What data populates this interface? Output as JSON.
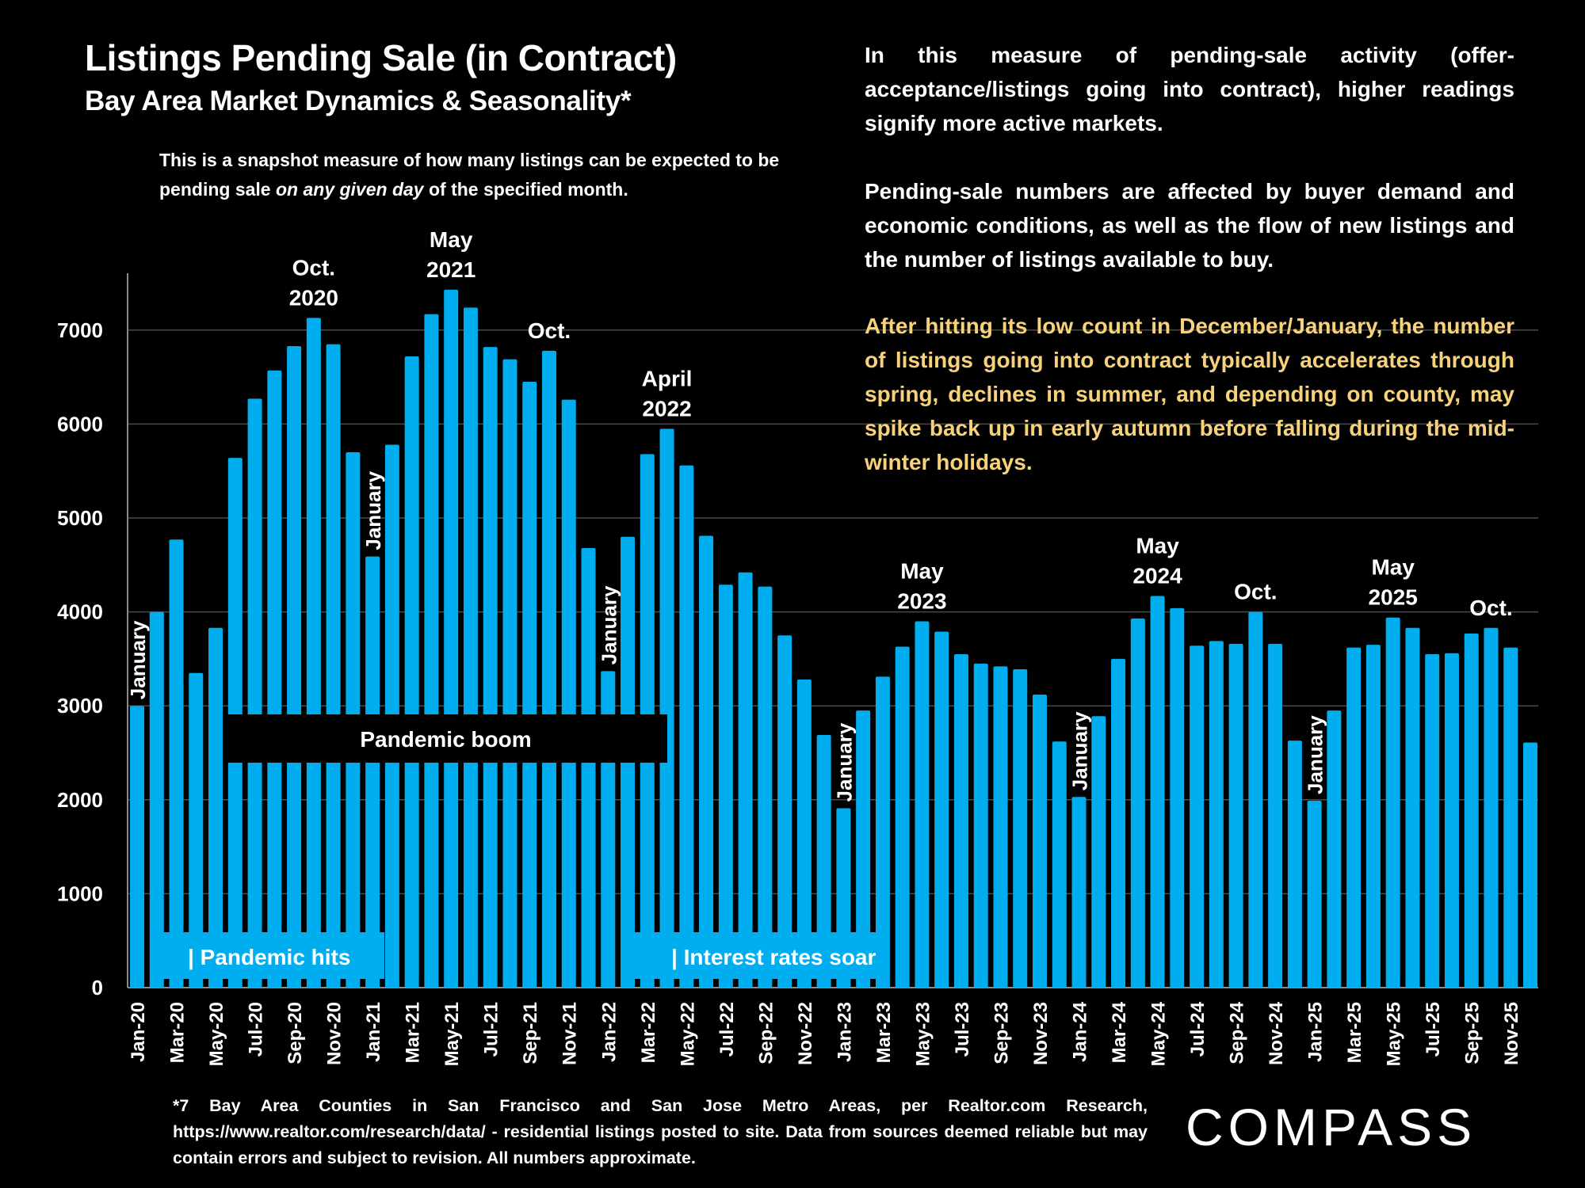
{
  "header": {
    "title": "Listings Pending Sale (in Contract)",
    "subtitle": "Bay Area Market Dynamics & Seasonality*",
    "snapshot_prefix": "This is a snapshot measure of how many listings can be expected to be pending sale ",
    "snapshot_emphasis": "on any given day",
    "snapshot_suffix": " of the specified month."
  },
  "commentary": {
    "paragraph1": "In this measure of pending-sale activity (offer-acceptance/listings going into contract), higher readings signify more active markets.",
    "paragraph2": "Pending-sale numbers are affected by buyer demand and economic conditions, as well as the flow of new listings and the number of listings available to buy.",
    "paragraph3": "After hitting its low count in December/January, the number of listings going into contract typically accelerates through spring, declines in summer, and depending on county, may spike back up in early autumn before falling during the mid-winter holidays.",
    "highlight_color": "#f7d27a"
  },
  "footer": {
    "footnote": "*7 Bay Area Counties in San Francisco and San Jose Metro Areas, per Realtor.com Research, https://www.realtor.com/research/data/ - residential listings posted to site.  Data from sources deemed reliable but may contain errors and subject to revision. All numbers approximate.",
    "logo_text": "COMPASS"
  },
  "chart_data": {
    "type": "bar",
    "title": "Listings Pending Sale (in Contract)",
    "xlabel": "",
    "ylabel": "",
    "ylim": [
      0,
      7500
    ],
    "yticks": [
      0,
      1000,
      2000,
      3000,
      4000,
      5000,
      6000,
      7000
    ],
    "grid": true,
    "bar_color": "#00adef",
    "categories": [
      "Jan-20",
      "Feb-20",
      "Mar-20",
      "Apr-20",
      "May-20",
      "Jun-20",
      "Jul-20",
      "Aug-20",
      "Sep-20",
      "Oct-20",
      "Nov-20",
      "Dec-20",
      "Jan-21",
      "Feb-21",
      "Mar-21",
      "Apr-21",
      "May-21",
      "Jun-21",
      "Jul-21",
      "Aug-21",
      "Sep-21",
      "Oct-21",
      "Nov-21",
      "Dec-21",
      "Jan-22",
      "Feb-22",
      "Mar-22",
      "Apr-22",
      "May-22",
      "Jun-22",
      "Jul-22",
      "Aug-22",
      "Sep-22",
      "Oct-22",
      "Nov-22",
      "Dec-22",
      "Jan-23",
      "Feb-23",
      "Mar-23",
      "Apr-23",
      "May-23",
      "Jun-23",
      "Jul-23",
      "Aug-23",
      "Sep-23",
      "Oct-23",
      "Nov-23",
      "Dec-23",
      "Jan-24",
      "Feb-24",
      "Mar-24",
      "Apr-24",
      "May-24",
      "Jun-24",
      "Jul-24",
      "Aug-24",
      "Sep-24",
      "Oct-24",
      "Nov-24",
      "Dec-24",
      "Jan-25",
      "Feb-25",
      "Mar-25",
      "Apr-25",
      "May-25",
      "Jun-25",
      "Jul-25",
      "Aug-25",
      "Sep-25",
      "Oct-25",
      "Nov-25",
      "Dec-25"
    ],
    "values": [
      3000,
      4000,
      4770,
      3350,
      3830,
      5640,
      6270,
      6570,
      6830,
      7130,
      6850,
      5700,
      4590,
      5780,
      6720,
      7170,
      7430,
      7240,
      6820,
      6690,
      6450,
      6780,
      6260,
      4680,
      3370,
      4800,
      5680,
      5950,
      5560,
      4810,
      4290,
      4420,
      4270,
      3750,
      3280,
      2690,
      1910,
      2950,
      3310,
      3630,
      3900,
      3790,
      3550,
      3450,
      3420,
      3390,
      3120,
      2620,
      2030,
      2890,
      3500,
      3930,
      4170,
      4040,
      3640,
      3690,
      3660,
      4000,
      3660,
      2630,
      1990,
      2950,
      3620,
      3650,
      3940,
      3830,
      3550,
      3560,
      3770,
      3830,
      3620,
      2610
    ],
    "xtick_labels": [
      "Jan-20",
      "Mar-20",
      "May-20",
      "Jul-20",
      "Sep-20",
      "Nov-20",
      "Jan-21",
      "Mar-21",
      "May-21",
      "Jul-21",
      "Sep-21",
      "Nov-21",
      "Jan-22",
      "Mar-22",
      "May-22",
      "Jul-22",
      "Sep-22",
      "Nov-22",
      "Jan-23",
      "Mar-23",
      "May-23",
      "Jul-23",
      "Sep-23",
      "Nov-23",
      "Jan-24",
      "Mar-24",
      "May-24",
      "Jul-24",
      "Sep-24",
      "Nov-24",
      "Jan-25",
      "Mar-25",
      "May-25",
      "Jul-25",
      "Sep-25",
      "Nov-25"
    ],
    "annotations": [
      {
        "type": "peak",
        "category": "Oct-20",
        "lines": [
          "Oct.",
          "2020"
        ]
      },
      {
        "type": "peak",
        "category": "May-21",
        "lines": [
          "May",
          "2021"
        ]
      },
      {
        "type": "peak",
        "category": "Oct-21",
        "lines": [
          "Oct."
        ]
      },
      {
        "type": "peak",
        "category": "Apr-22",
        "lines": [
          "April",
          "2022"
        ]
      },
      {
        "type": "peak",
        "category": "May-23",
        "lines": [
          "May",
          "2023"
        ]
      },
      {
        "type": "peak",
        "category": "May-24",
        "lines": [
          "May",
          "2024"
        ]
      },
      {
        "type": "peak",
        "category": "Oct-24",
        "lines": [
          "Oct."
        ]
      },
      {
        "type": "peak",
        "category": "May-25",
        "lines": [
          "May",
          "2025"
        ]
      },
      {
        "type": "peak",
        "category": "Oct-25",
        "lines": [
          "Oct."
        ]
      },
      {
        "type": "january",
        "category": "Jan-20",
        "text": "January"
      },
      {
        "type": "january",
        "category": "Jan-21",
        "text": "January"
      },
      {
        "type": "january",
        "category": "Jan-22",
        "text": "January"
      },
      {
        "type": "january",
        "category": "Jan-23",
        "text": "January"
      },
      {
        "type": "january",
        "category": "Jan-24",
        "text": "January"
      },
      {
        "type": "january",
        "category": "Jan-25",
        "text": "January"
      }
    ],
    "bands": [
      {
        "name": "pandemic-boom",
        "text": "Pandemic boom",
        "from": "Jun-20",
        "to": "Mar-22",
        "style": "dark"
      },
      {
        "name": "pandemic-hits",
        "text": "| Pandemic hits",
        "from": "Feb-20",
        "to": "Jan-21",
        "style": "blue"
      },
      {
        "name": "interest-rates-soar",
        "text": "| Interest rates soar",
        "from": "Mar-22",
        "to": "Feb-23",
        "style": "blue"
      }
    ]
  }
}
